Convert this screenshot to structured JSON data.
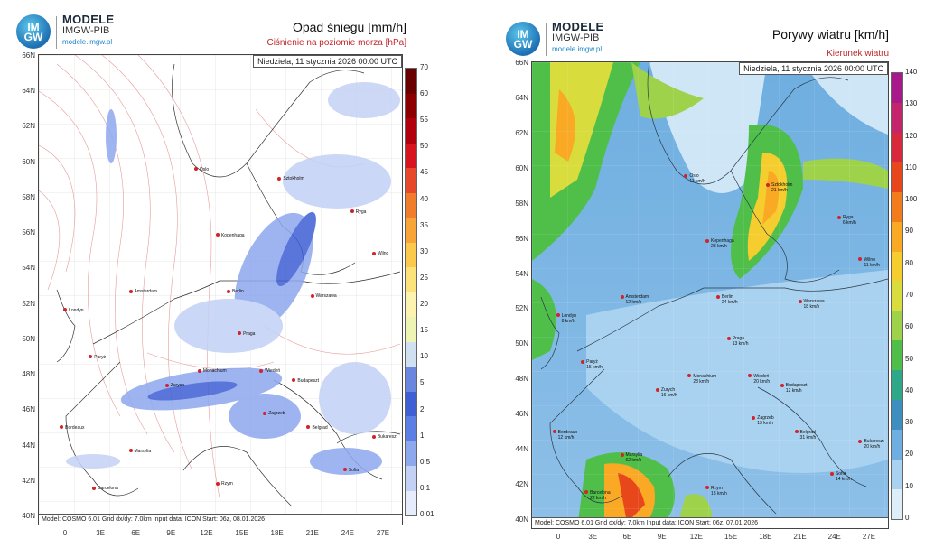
{
  "left": {
    "logo": {
      "mark_top": "IM",
      "mark_bottom": "GW",
      "brand": "MODELE",
      "org": "IMGW-PIB",
      "url": "modele.imgw.pl"
    },
    "title": "Opad śniegu [mm/h]",
    "subtitle": "Ciśnienie na poziomie morza [hPa]",
    "datetime": "Niedziela, 11 stycznia 2026 00:00 UTC",
    "footer": "Model: COSMO 6.01   Grid dx/dy: 7.0km   Input data: ICON   Start: 06z, 08.01.2026",
    "lat_labels": [
      "66N",
      "64N",
      "62N",
      "60N",
      "58N",
      "56N",
      "54N",
      "52N",
      "50N",
      "48N",
      "46N",
      "44N",
      "42N",
      "40N"
    ],
    "lon_labels": [
      "0",
      "3E",
      "6E",
      "9E",
      "12E",
      "15E",
      "18E",
      "21E",
      "24E",
      "27E"
    ],
    "colorbar": {
      "labels": [
        "70",
        "60",
        "55",
        "50",
        "45",
        "40",
        "35",
        "30",
        "25",
        "20",
        "15",
        "10",
        "5",
        "2",
        "1",
        "0.5",
        "0.1",
        "0.01"
      ],
      "colors": [
        "#6b0000",
        "#8e0000",
        "#b3000d",
        "#d8141e",
        "#e8482a",
        "#f07c2c",
        "#f7a538",
        "#fbc94e",
        "#fce27a",
        "#fdf3b0",
        "#eef5b4",
        "#d0e0f0",
        "#6a86de",
        "#3f5fd4",
        "#5b7fe4",
        "#8ea8ee",
        "#c3d1f5",
        "#e6ecfb"
      ]
    },
    "cities": [
      {
        "name": "Oslo"
      },
      {
        "name": "Sztokholm"
      },
      {
        "name": "Ryga"
      },
      {
        "name": "Kopenhaga"
      },
      {
        "name": "Wilno"
      },
      {
        "name": "Amsterdam"
      },
      {
        "name": "Berlin"
      },
      {
        "name": "Warszawa"
      },
      {
        "name": "Londyn"
      },
      {
        "name": "Praga"
      },
      {
        "name": "Paryż"
      },
      {
        "name": "Monachium"
      },
      {
        "name": "Wiedeń"
      },
      {
        "name": "Zurych"
      },
      {
        "name": "Budapeszt"
      },
      {
        "name": "Zagrzeb"
      },
      {
        "name": "Bordeaux"
      },
      {
        "name": "Belgrad"
      },
      {
        "name": "Bukareszt"
      },
      {
        "name": "Marsylia"
      },
      {
        "name": "Sofia"
      },
      {
        "name": "Barcelona"
      },
      {
        "name": "Rzym"
      }
    ]
  },
  "right": {
    "logo": {
      "mark_top": "IM",
      "mark_bottom": "GW",
      "brand": "MODELE",
      "org": "IMGW-PIB",
      "url": "modele.imgw.pl"
    },
    "title": "Porywy wiatru [km/h]",
    "subtitle": "Kierunek wiatru",
    "datetime": "Niedziela, 11 stycznia 2026 00:00 UTC",
    "footer": "Model: COSMO 6.01   Grid dx/dy: 7.0km   Input data: ICON   Start: 06z, 07.01.2026",
    "lat_labels": [
      "66N",
      "64N",
      "62N",
      "60N",
      "58N",
      "56N",
      "54N",
      "52N",
      "50N",
      "48N",
      "46N",
      "44N",
      "42N",
      "40N"
    ],
    "lon_labels": [
      "0",
      "3E",
      "6E",
      "9E",
      "12E",
      "15E",
      "18E",
      "21E",
      "24E",
      "27E"
    ],
    "colorbar": {
      "labels": [
        "140",
        "130",
        "120",
        "110",
        "100",
        "90",
        "80",
        "70",
        "60",
        "50",
        "40",
        "30",
        "20",
        "10",
        "0"
      ],
      "colors": [
        "#a81a8c",
        "#c3246b",
        "#d8283c",
        "#e8471c",
        "#f27c1c",
        "#f9a924",
        "#f5cd2e",
        "#d8dc3c",
        "#9ed24a",
        "#4fbf4a",
        "#2fa88a",
        "#3d8fc2",
        "#6eaee0",
        "#a8d2f0",
        "#ddeef9"
      ]
    },
    "cities": [
      {
        "name": "Oslo",
        "value": "11 km/h"
      },
      {
        "name": "Sztokholm",
        "value": "21 km/h"
      },
      {
        "name": "Ryga",
        "value": "6 km/h"
      },
      {
        "name": "Kopenhaga",
        "value": "28 km/h"
      },
      {
        "name": "Wilno",
        "value": "11 km/h"
      },
      {
        "name": "Amsterdam",
        "value": "12 km/h"
      },
      {
        "name": "Berlin",
        "value": "24 km/h"
      },
      {
        "name": "Warszawa",
        "value": "18 km/h"
      },
      {
        "name": "Londyn",
        "value": "8 km/h"
      },
      {
        "name": "Praga",
        "value": "13 km/h"
      },
      {
        "name": "Paryż",
        "value": "15 km/h"
      },
      {
        "name": "Monachium",
        "value": "28 km/h"
      },
      {
        "name": "Wiedeń",
        "value": "20 km/h"
      },
      {
        "name": "Zurych",
        "value": "16 km/h"
      },
      {
        "name": "Budapeszt",
        "value": "12 km/h"
      },
      {
        "name": "Zagrzeb",
        "value": "13 km/h"
      },
      {
        "name": "Bordeaux",
        "value": "12 km/h"
      },
      {
        "name": "Belgrad",
        "value": "31 km/h"
      },
      {
        "name": "Bukareszt",
        "value": "20 km/h"
      },
      {
        "name": "Marsylia",
        "value": "62 km/h"
      },
      {
        "name": "Sofia",
        "value": "14 km/h"
      },
      {
        "name": "Barcelona",
        "value": "22 km/h"
      },
      {
        "name": "Rzym",
        "value": "15 km/h"
      }
    ]
  }
}
